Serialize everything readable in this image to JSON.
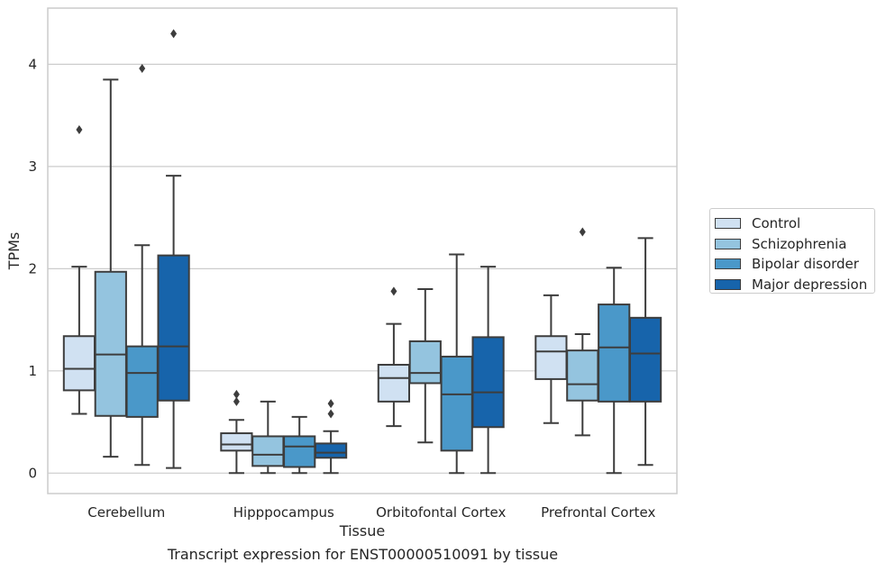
{
  "chart_data": {
    "type": "box",
    "title": "",
    "caption": "Transcript expression for ENST00000510091 by tissue",
    "xlabel": "Tissue",
    "ylabel": "TPMs",
    "ylim": [
      -0.2,
      4.55
    ],
    "yticks": [
      0,
      1,
      2,
      3,
      4
    ],
    "grid": "horizontal",
    "legend_position": "right",
    "categories": [
      "Cerebellum",
      "Hipppocampus",
      "Orbitofontal Cortex",
      "Prefrontal Cortex"
    ],
    "series": [
      {
        "name": "Control",
        "color": "#d0e1f2",
        "boxes": [
          {
            "whislo": 0.58,
            "q1": 0.81,
            "med": 1.02,
            "q3": 1.34,
            "whishi": 2.02,
            "fliers": [
              3.36
            ]
          },
          {
            "whislo": 0.0,
            "q1": 0.22,
            "med": 0.28,
            "q3": 0.39,
            "whishi": 0.52,
            "fliers": [
              0.7,
              0.77
            ]
          },
          {
            "whislo": 0.46,
            "q1": 0.7,
            "med": 0.93,
            "q3": 1.06,
            "whishi": 1.46,
            "fliers": [
              1.78
            ]
          },
          {
            "whislo": 0.49,
            "q1": 0.92,
            "med": 1.19,
            "q3": 1.34,
            "whishi": 1.74,
            "fliers": []
          }
        ]
      },
      {
        "name": "Schizophrenia",
        "color": "#94c4df",
        "boxes": [
          {
            "whislo": 0.16,
            "q1": 0.56,
            "med": 1.16,
            "q3": 1.97,
            "whishi": 3.85,
            "fliers": []
          },
          {
            "whislo": 0.0,
            "q1": 0.07,
            "med": 0.18,
            "q3": 0.36,
            "whishi": 0.7,
            "fliers": []
          },
          {
            "whislo": 0.3,
            "q1": 0.88,
            "med": 0.98,
            "q3": 1.29,
            "whishi": 1.8,
            "fliers": []
          },
          {
            "whislo": 0.37,
            "q1": 0.71,
            "med": 0.87,
            "q3": 1.2,
            "whishi": 1.36,
            "fliers": [
              2.36
            ]
          }
        ]
      },
      {
        "name": "Bipolar disorder",
        "color": "#4a98c9",
        "boxes": [
          {
            "whislo": 0.08,
            "q1": 0.55,
            "med": 0.98,
            "q3": 1.24,
            "whishi": 2.23,
            "fliers": [
              3.96
            ]
          },
          {
            "whislo": 0.0,
            "q1": 0.06,
            "med": 0.26,
            "q3": 0.36,
            "whishi": 0.55,
            "fliers": []
          },
          {
            "whislo": 0.0,
            "q1": 0.22,
            "med": 0.77,
            "q3": 1.14,
            "whishi": 2.14,
            "fliers": []
          },
          {
            "whislo": 0.0,
            "q1": 0.7,
            "med": 1.23,
            "q3": 1.65,
            "whishi": 2.01,
            "fliers": []
          }
        ]
      },
      {
        "name": "Major depression",
        "color": "#1764ab",
        "boxes": [
          {
            "whislo": 0.05,
            "q1": 0.71,
            "med": 1.24,
            "q3": 2.13,
            "whishi": 2.91,
            "fliers": [
              4.3
            ]
          },
          {
            "whislo": 0.0,
            "q1": 0.15,
            "med": 0.2,
            "q3": 0.29,
            "whishi": 0.41,
            "fliers": [
              0.58,
              0.68
            ]
          },
          {
            "whislo": 0.0,
            "q1": 0.45,
            "med": 0.79,
            "q3": 1.33,
            "whishi": 2.02,
            "fliers": []
          },
          {
            "whislo": 0.08,
            "q1": 0.7,
            "med": 1.17,
            "q3": 1.52,
            "whishi": 2.3,
            "fliers": []
          }
        ]
      }
    ]
  }
}
